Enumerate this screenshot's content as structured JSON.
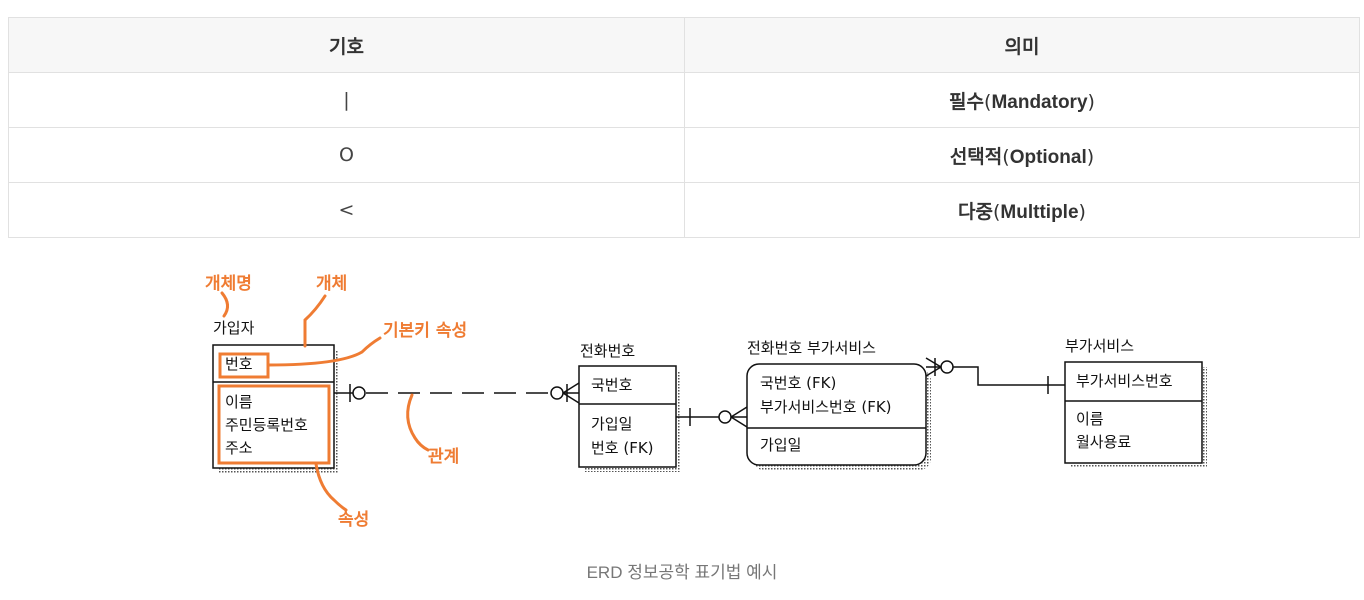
{
  "table": {
    "headers": [
      "기호",
      "의미"
    ],
    "rows": [
      {
        "symbol": "|",
        "meaning_ko": "필수",
        "meaning_en": "Mandatory"
      },
      {
        "symbol": "O",
        "meaning_ko": "선택적",
        "meaning_en": "Optional"
      },
      {
        "symbol": "<",
        "meaning_ko": "다중",
        "meaning_en": "Multtiple"
      }
    ]
  },
  "diagram": {
    "entities": {
      "subscriber": {
        "name": "가입자",
        "key": "번호",
        "attributes": [
          "이름",
          "주민등록번호",
          "주소"
        ]
      },
      "phone": {
        "name": "전화번호",
        "key": "국번호",
        "attributes": [
          "가입일",
          "번호 (FK)"
        ]
      },
      "phone_service": {
        "name": "전화번호 부가서비스",
        "keys": [
          "국번호 (FK)",
          "부가서비스번호 (FK)"
        ],
        "attributes": [
          "가입일"
        ]
      },
      "service": {
        "name": "부가서비스",
        "key": "부가서비스번호",
        "attributes": [
          "이름",
          "월사용료"
        ]
      }
    },
    "annotations": {
      "entity_name": "개체명",
      "entity": "개체",
      "primary_key": "기본키 속성",
      "relationship": "관계",
      "attribute": "속성"
    },
    "annotation_color": "#ef7c33"
  },
  "caption": "ERD 정보공학 표기법 예시"
}
